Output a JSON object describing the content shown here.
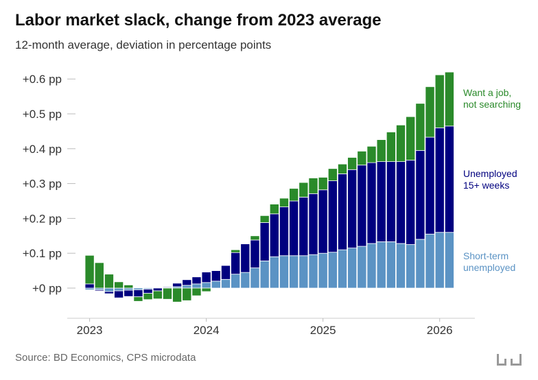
{
  "title": "Labor market slack, change from 2023 average",
  "subtitle": "12-month average, deviation in percentage points",
  "source": "Source: BD Economics, CPS microdata",
  "logo_text": "bd",
  "colors": {
    "short_term": "#5b93c4",
    "long_term": "#00007f",
    "want_job": "#2a8a2a"
  },
  "chart_data": {
    "type": "bar",
    "stacked": true,
    "y_unit": "pp",
    "ylim": [
      -0.06,
      0.62
    ],
    "yticks": [
      0,
      0.1,
      0.2,
      0.3,
      0.4,
      0.5,
      0.6
    ],
    "ytick_labels": [
      "+0 pp",
      "+0.1 pp",
      "+0.2 pp",
      "+0.3 pp",
      "+0.4 pp",
      "+0.5 pp",
      "+0.6 pp"
    ],
    "xtick_labels": [
      "2023",
      "2024",
      "2025",
      "2026"
    ],
    "categories": [
      "2023-01",
      "2023-02",
      "2023-03",
      "2023-04",
      "2023-05",
      "2023-06",
      "2023-07",
      "2023-08",
      "2023-09",
      "2023-10",
      "2023-11",
      "2023-12",
      "2024-01",
      "2024-02",
      "2024-03",
      "2024-04",
      "2024-05",
      "2024-06",
      "2024-07",
      "2024-08",
      "2024-09",
      "2024-10",
      "2024-11",
      "2024-12",
      "2025-01",
      "2025-02",
      "2025-03",
      "2025-04",
      "2025-05",
      "2025-06",
      "2025-07",
      "2025-08",
      "2025-09",
      "2025-10",
      "2025-11",
      "2025-12",
      "2026-01",
      "2026-02"
    ],
    "grid": false,
    "series": [
      {
        "name": "Short-term unemployed",
        "key": "short_term",
        "values": [
          -0.005,
          -0.005,
          -0.01,
          -0.008,
          -0.006,
          -0.005,
          -0.003,
          0.0,
          0.002,
          0.004,
          0.008,
          0.012,
          0.016,
          0.02,
          0.025,
          0.04,
          0.045,
          0.058,
          0.078,
          0.09,
          0.093,
          0.093,
          0.093,
          0.096,
          0.1,
          0.103,
          0.11,
          0.115,
          0.12,
          0.128,
          0.133,
          0.133,
          0.128,
          0.125,
          0.14,
          0.155,
          0.16,
          0.16
        ]
      },
      {
        "name": "Unemployed 15+ weeks",
        "key": "long_term",
        "values": [
          0.012,
          -0.003,
          -0.006,
          -0.02,
          -0.018,
          -0.02,
          -0.012,
          -0.008,
          0.002,
          0.01,
          0.016,
          0.02,
          0.03,
          0.03,
          0.04,
          0.062,
          0.082,
          0.08,
          0.11,
          0.123,
          0.14,
          0.157,
          0.168,
          0.175,
          0.182,
          0.205,
          0.218,
          0.225,
          0.233,
          0.232,
          0.23,
          0.23,
          0.235,
          0.242,
          0.255,
          0.278,
          0.3,
          0.305
        ]
      },
      {
        "name": "Want a job,\nnot searching",
        "key": "want_job",
        "values": [
          0.082,
          0.073,
          0.04,
          0.018,
          0.009,
          -0.013,
          -0.018,
          -0.023,
          -0.032,
          -0.04,
          -0.036,
          -0.022,
          -0.01,
          0.0,
          0.0,
          0.008,
          0.0,
          0.012,
          0.02,
          0.028,
          0.025,
          0.036,
          0.042,
          0.045,
          0.036,
          0.035,
          0.028,
          0.035,
          0.04,
          0.047,
          0.063,
          0.085,
          0.105,
          0.125,
          0.135,
          0.145,
          0.152,
          0.155
        ]
      }
    ]
  },
  "legend_labels": [
    {
      "key": "want_job",
      "lines": [
        "Want a job,",
        "not searching"
      ]
    },
    {
      "key": "long_term",
      "lines": [
        "Unemployed",
        "15+ weeks"
      ]
    },
    {
      "key": "short_term",
      "lines": [
        "Short-term",
        "unemployed"
      ]
    }
  ]
}
